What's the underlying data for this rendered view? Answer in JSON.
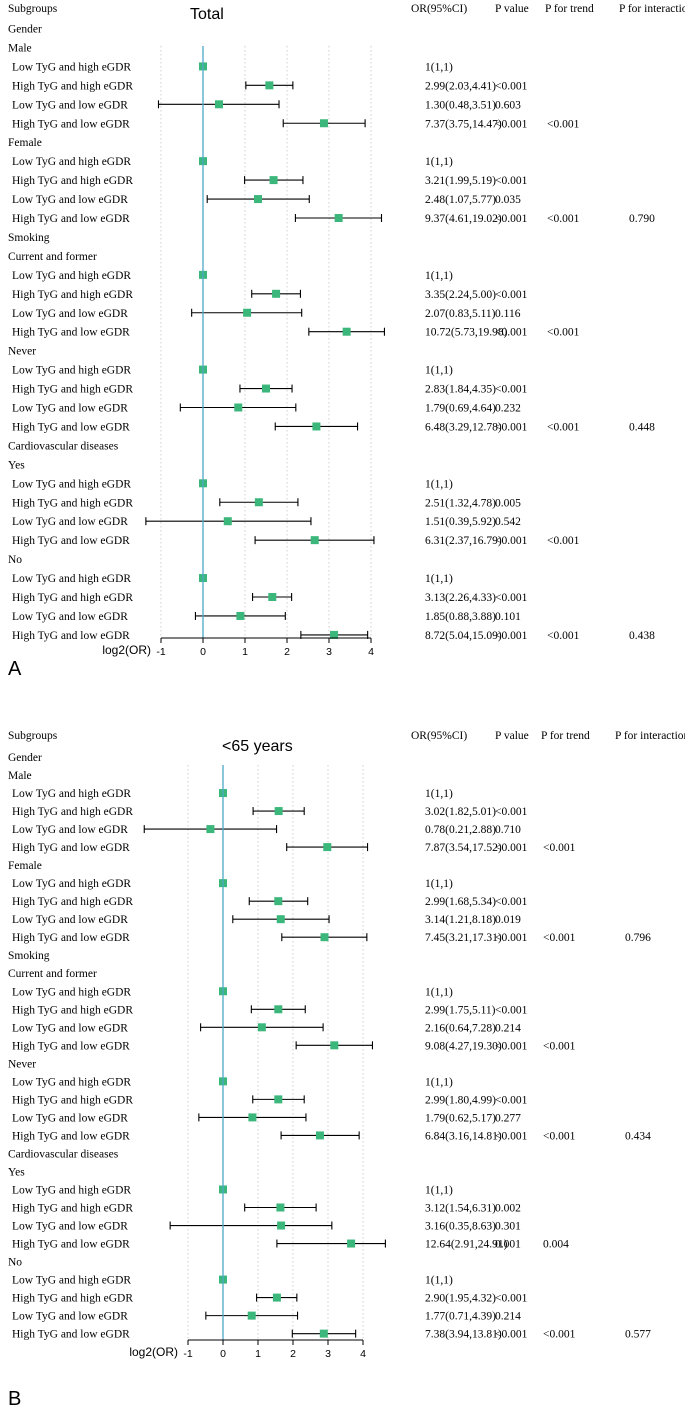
{
  "headers": {
    "subgroups": "Subgroups",
    "or": "OR(95%CI)",
    "p": "P value",
    "ptrend": "P for trend",
    "pint": "P for interaction"
  },
  "axis_label": "log2(OR)",
  "colors": {
    "marker": "#3cb77c",
    "refline": "#4fa8c8",
    "ci": "#000000",
    "grid": "#bbbbbb"
  },
  "chart_data": [
    {
      "type": "forest",
      "panel_label": "A",
      "title": "Total",
      "xlabel": "log2(OR)",
      "xlim": [
        -1,
        4
      ],
      "xticks": [
        -1,
        0,
        1,
        2,
        3,
        4
      ],
      "reference_line": 0,
      "rows": [
        {
          "label": "Gender",
          "kind": "header"
        },
        {
          "label": "Male",
          "kind": "header"
        },
        {
          "label": "Low TyG and high eGDR",
          "or": "1(1,1)",
          "p": "",
          "trend": "",
          "inter": "",
          "est": 0,
          "lo": 0,
          "hi": 0
        },
        {
          "label": "High TyG and high eGDR",
          "or": "2.99(2.03,4.41)",
          "p": "<0.001",
          "trend": "",
          "inter": "",
          "est": 1.58,
          "lo": 1.02,
          "hi": 2.14
        },
        {
          "label": "Low TyG and low eGDR",
          "or": "1.30(0.48,3.51)",
          "p": "0.603",
          "trend": "",
          "inter": "",
          "est": 0.38,
          "lo": -1.06,
          "hi": 1.81
        },
        {
          "label": "High TyG and low eGDR",
          "or": "7.37(3.75,14.47)",
          "p": "<0.001",
          "trend": "<0.001",
          "inter": "",
          "est": 2.88,
          "lo": 1.91,
          "hi": 3.86
        },
        {
          "label": "Female",
          "kind": "header"
        },
        {
          "label": "Low TyG and high eGDR",
          "or": "1(1,1)",
          "p": "",
          "trend": "",
          "inter": "",
          "est": 0,
          "lo": 0,
          "hi": 0
        },
        {
          "label": "High TyG and high eGDR",
          "or": "3.21(1.99,5.19)",
          "p": "<0.001",
          "trend": "",
          "inter": "",
          "est": 1.68,
          "lo": 0.99,
          "hi": 2.38
        },
        {
          "label": "Low TyG and low eGDR",
          "or": "2.48(1.07,5.77)",
          "p": "0.035",
          "trend": "",
          "inter": "",
          "est": 1.31,
          "lo": 0.1,
          "hi": 2.53
        },
        {
          "label": "High TyG and low eGDR",
          "or": "9.37(4.61,19.02)",
          "p": "<0.001",
          "trend": "<0.001",
          "inter": "0.790",
          "est": 3.23,
          "lo": 2.2,
          "hi": 4.25
        },
        {
          "label": "Smoking",
          "kind": "header"
        },
        {
          "label": "Current and former",
          "kind": "header"
        },
        {
          "label": "Low TyG and high eGDR",
          "or": "1(1,1)",
          "p": "",
          "trend": "",
          "inter": "",
          "est": 0,
          "lo": 0,
          "hi": 0
        },
        {
          "label": "High TyG and high eGDR",
          "or": "3.35(2.24,5.00)",
          "p": "<0.001",
          "trend": "",
          "inter": "",
          "est": 1.74,
          "lo": 1.16,
          "hi": 2.32
        },
        {
          "label": "Low TyG and low eGDR",
          "or": "2.07(0.83,5.11)",
          "p": "0.116",
          "trend": "",
          "inter": "",
          "est": 1.05,
          "lo": -0.27,
          "hi": 2.35
        },
        {
          "label": "High TyG and low eGDR",
          "or": "10.72(5.73,19.98)",
          "p": "<0.001",
          "trend": "<0.001",
          "inter": "",
          "est": 3.42,
          "lo": 2.52,
          "hi": 4.32
        },
        {
          "label": "Never",
          "kind": "header"
        },
        {
          "label": "Low TyG and high eGDR",
          "or": "1(1,1)",
          "p": "",
          "trend": "",
          "inter": "",
          "est": 0,
          "lo": 0,
          "hi": 0
        },
        {
          "label": "High TyG and high eGDR",
          "or": "2.83(1.84,4.35)",
          "p": "<0.001",
          "trend": "",
          "inter": "",
          "est": 1.5,
          "lo": 0.88,
          "hi": 2.12
        },
        {
          "label": "Low TyG and low eGDR",
          "or": "1.79(0.69,4.64)",
          "p": "0.232",
          "trend": "",
          "inter": "",
          "est": 0.84,
          "lo": -0.54,
          "hi": 2.21
        },
        {
          "label": "High TyG and low eGDR",
          "or": "6.48(3.29,12.78)",
          "p": "<0.001",
          "trend": "<0.001",
          "inter": "0.448",
          "est": 2.7,
          "lo": 1.72,
          "hi": 3.68
        },
        {
          "label": "Cardiovascular diseases",
          "kind": "header"
        },
        {
          "label": "Yes",
          "kind": "header"
        },
        {
          "label": "Low TyG and high eGDR",
          "or": "1(1,1)",
          "p": "",
          "trend": "",
          "inter": "",
          "est": 0,
          "lo": 0,
          "hi": 0
        },
        {
          "label": "High TyG and high eGDR",
          "or": "2.51(1.32,4.78)",
          "p": "0.005",
          "trend": "",
          "inter": "",
          "est": 1.33,
          "lo": 0.4,
          "hi": 2.26
        },
        {
          "label": "Low TyG and low eGDR",
          "or": "1.51(0.39,5.92)",
          "p": "0.542",
          "trend": "",
          "inter": "",
          "est": 0.59,
          "lo": -1.36,
          "hi": 2.57
        },
        {
          "label": "High TyG and low eGDR",
          "or": "6.31(2.37,16.79)",
          "p": "<0.001",
          "trend": "<0.001",
          "inter": "",
          "est": 2.66,
          "lo": 1.24,
          "hi": 4.07
        },
        {
          "label": "No",
          "kind": "header"
        },
        {
          "label": "Low TyG and high eGDR",
          "or": "1(1,1)",
          "p": "",
          "trend": "",
          "inter": "",
          "est": 0,
          "lo": 0,
          "hi": 0
        },
        {
          "label": "High TyG and high eGDR",
          "or": "3.13(2.26,4.33)",
          "p": "<0.001",
          "trend": "",
          "inter": "",
          "est": 1.65,
          "lo": 1.18,
          "hi": 2.11
        },
        {
          "label": "Low TyG and low eGDR",
          "or": "1.85(0.88,3.88)",
          "p": "0.101",
          "trend": "",
          "inter": "",
          "est": 0.89,
          "lo": -0.18,
          "hi": 1.96
        },
        {
          "label": "High TyG and low eGDR",
          "or": "8.72(5.04,15.09)",
          "p": "<0.001",
          "trend": "<0.001",
          "inter": "0.438",
          "est": 3.12,
          "lo": 2.33,
          "hi": 3.92
        }
      ]
    },
    {
      "type": "forest",
      "panel_label": "B",
      "title": "<65 years",
      "xlabel": "log2(OR)",
      "xlim": [
        -1,
        4
      ],
      "xticks": [
        -1,
        0,
        1,
        2,
        3,
        4
      ],
      "reference_line": 0,
      "rows": [
        {
          "label": "Gender",
          "kind": "header"
        },
        {
          "label": "Male",
          "kind": "header"
        },
        {
          "label": "Low TyG and high eGDR",
          "or": "1(1,1)",
          "p": "",
          "trend": "",
          "inter": "",
          "est": 0,
          "lo": 0,
          "hi": 0
        },
        {
          "label": "High TyG and high eGDR",
          "or": "3.02(1.82,5.01)",
          "p": "<0.001",
          "trend": "",
          "inter": "",
          "est": 1.59,
          "lo": 0.86,
          "hi": 2.32
        },
        {
          "label": "Low TyG and low eGDR",
          "or": "0.78(0.21,2.88)",
          "p": "0.710",
          "trend": "",
          "inter": "",
          "est": -0.36,
          "lo": -2.25,
          "hi": 1.53
        },
        {
          "label": "High TyG and low eGDR",
          "or": "7.87(3.54,17.52)",
          "p": "<0.001",
          "trend": "<0.001",
          "inter": "",
          "est": 2.98,
          "lo": 1.82,
          "hi": 4.13
        },
        {
          "label": "Female",
          "kind": "header"
        },
        {
          "label": "Low TyG and high eGDR",
          "or": "1(1,1)",
          "p": "",
          "trend": "",
          "inter": "",
          "est": 0,
          "lo": 0,
          "hi": 0
        },
        {
          "label": "High TyG and high eGDR",
          "or": "2.99(1.68,5.34)",
          "p": "<0.001",
          "trend": "",
          "inter": "",
          "est": 1.58,
          "lo": 0.75,
          "hi": 2.42
        },
        {
          "label": "Low TyG and low eGDR",
          "or": "3.14(1.21,8.18)",
          "p": "0.019",
          "trend": "",
          "inter": "",
          "est": 1.65,
          "lo": 0.28,
          "hi": 3.03
        },
        {
          "label": "High TyG and low eGDR",
          "or": "7.45(3.21,17.31)",
          "p": "<0.001",
          "trend": "<0.001",
          "inter": "0.796",
          "est": 2.9,
          "lo": 1.68,
          "hi": 4.11
        },
        {
          "label": "Smoking",
          "kind": "header"
        },
        {
          "label": "Current and former",
          "kind": "header"
        },
        {
          "label": "Low TyG and high eGDR",
          "or": "1(1,1)",
          "p": "",
          "trend": "",
          "inter": "",
          "est": 0,
          "lo": 0,
          "hi": 0
        },
        {
          "label": "High TyG and high eGDR",
          "or": "2.99(1.75,5.11)",
          "p": "<0.001",
          "trend": "",
          "inter": "",
          "est": 1.58,
          "lo": 0.81,
          "hi": 2.35
        },
        {
          "label": "Low TyG and low eGDR",
          "or": "2.16(0.64,7.28)",
          "p": "0.214",
          "trend": "",
          "inter": "",
          "est": 1.11,
          "lo": -0.64,
          "hi": 2.86
        },
        {
          "label": "High TyG and low eGDR",
          "or": "9.08(4.27,19.30)",
          "p": "<0.001",
          "trend": "<0.001",
          "inter": "",
          "est": 3.18,
          "lo": 2.09,
          "hi": 4.27
        },
        {
          "label": "Never",
          "kind": "header"
        },
        {
          "label": "Low TyG and high eGDR",
          "or": "1(1,1)",
          "p": "",
          "trend": "",
          "inter": "",
          "est": 0,
          "lo": 0,
          "hi": 0
        },
        {
          "label": "High TyG and high eGDR",
          "or": "2.99(1.80,4.99)",
          "p": "<0.001",
          "trend": "",
          "inter": "",
          "est": 1.58,
          "lo": 0.85,
          "hi": 2.32
        },
        {
          "label": "Low TyG and low eGDR",
          "or": "1.79(0.62,5.17)",
          "p": "0.277",
          "trend": "",
          "inter": "",
          "est": 0.84,
          "lo": -0.69,
          "hi": 2.37
        },
        {
          "label": "High TyG and low eGDR",
          "or": "6.84(3.16,14.81)",
          "p": "<0.001",
          "trend": "<0.001",
          "inter": "0.434",
          "est": 2.77,
          "lo": 1.66,
          "hi": 3.89
        },
        {
          "label": "Cardiovascular diseases",
          "kind": "header"
        },
        {
          "label": "Yes",
          "kind": "header"
        },
        {
          "label": "Low TyG and high eGDR",
          "or": "1(1,1)",
          "p": "",
          "trend": "",
          "inter": "",
          "est": 0,
          "lo": 0,
          "hi": 0
        },
        {
          "label": "High TyG and high eGDR",
          "or": "3.12(1.54,6.31)",
          "p": "0.002",
          "trend": "",
          "inter": "",
          "est": 1.64,
          "lo": 0.62,
          "hi": 2.66
        },
        {
          "label": "Low TyG and low eGDR",
          "or": "3.16(0.35,8.63)",
          "p": "0.301",
          "trend": "",
          "inter": "",
          "est": 1.66,
          "lo": -1.51,
          "hi": 3.11
        },
        {
          "label": "High TyG and low eGDR",
          "or": "12.64(2.91,24.91)",
          "p": "0.001",
          "trend": "0.004",
          "inter": "",
          "est": 3.66,
          "lo": 1.54,
          "hi": 4.64
        },
        {
          "label": "No",
          "kind": "header"
        },
        {
          "label": "Low TyG and high eGDR",
          "or": "1(1,1)",
          "p": "",
          "trend": "",
          "inter": "",
          "est": 0,
          "lo": 0,
          "hi": 0
        },
        {
          "label": "High TyG and high eGDR",
          "or": "2.90(1.95,4.32)",
          "p": "<0.001",
          "trend": "",
          "inter": "",
          "est": 1.54,
          "lo": 0.96,
          "hi": 2.11
        },
        {
          "label": "Low TyG and low eGDR",
          "or": "1.77(0.71,4.39)",
          "p": "0.214",
          "trend": "",
          "inter": "",
          "est": 0.82,
          "lo": -0.49,
          "hi": 2.13
        },
        {
          "label": "High TyG and low eGDR",
          "or": "7.38(3.94,13.81)",
          "p": "<0.001",
          "trend": "<0.001",
          "inter": "0.577",
          "est": 2.88,
          "lo": 1.98,
          "hi": 3.79
        }
      ]
    }
  ]
}
